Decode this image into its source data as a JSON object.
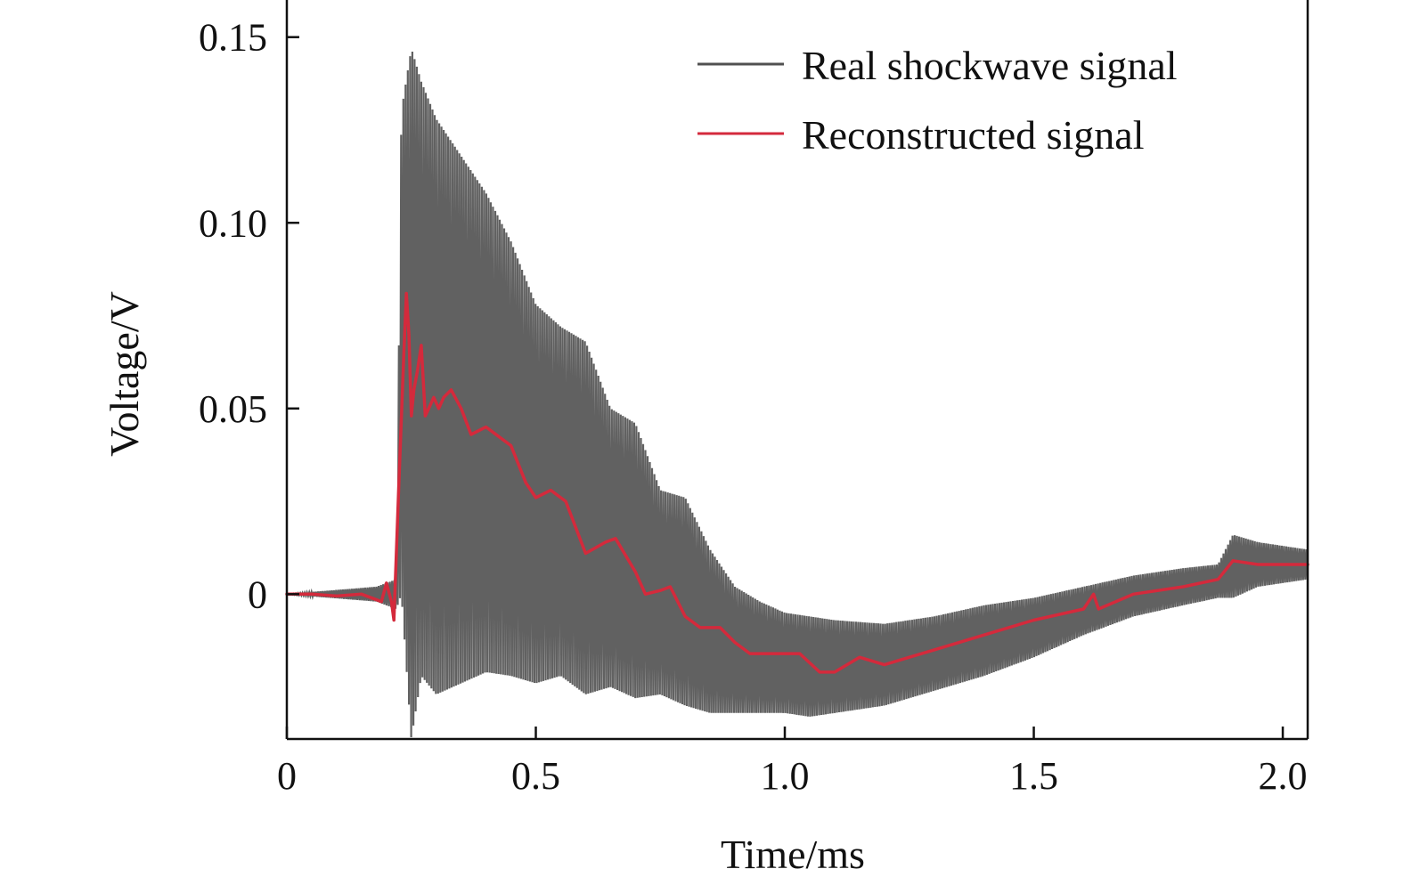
{
  "chart_data": {
    "type": "line",
    "title": "",
    "xlabel": "Time/ms",
    "ylabel": "Voltage/V",
    "xlim": [
      0,
      2.05
    ],
    "ylim": [
      -0.039,
      0.16
    ],
    "x_ticks": [
      0,
      0.5,
      1.0,
      1.5,
      2.0
    ],
    "x_tick_labels": [
      "0",
      "0.5",
      "1.0",
      "1.5",
      "2.0"
    ],
    "y_ticks": [
      0,
      0.05,
      0.1,
      0.15
    ],
    "y_tick_labels": [
      "0",
      "0.05",
      "0.10",
      "0.15"
    ],
    "grid": false,
    "legend_position": "top-right",
    "series": [
      {
        "name": "Real shockwave signal",
        "color": "#505050",
        "style": "rapid oscillation around a decaying envelope",
        "envelope_upper": [
          [
            0.0,
            0.0
          ],
          [
            0.18,
            0.002
          ],
          [
            0.22,
            0.004
          ],
          [
            0.23,
            0.13
          ],
          [
            0.25,
            0.147
          ],
          [
            0.27,
            0.138
          ],
          [
            0.3,
            0.128
          ],
          [
            0.35,
            0.118
          ],
          [
            0.4,
            0.108
          ],
          [
            0.45,
            0.095
          ],
          [
            0.5,
            0.078
          ],
          [
            0.55,
            0.072
          ],
          [
            0.6,
            0.068
          ],
          [
            0.65,
            0.05
          ],
          [
            0.7,
            0.046
          ],
          [
            0.75,
            0.028
          ],
          [
            0.8,
            0.026
          ],
          [
            0.85,
            0.012
          ],
          [
            0.9,
            0.002
          ],
          [
            0.95,
            -0.002
          ],
          [
            1.0,
            -0.005
          ],
          [
            1.05,
            -0.006
          ],
          [
            1.1,
            -0.007
          ],
          [
            1.2,
            -0.008
          ],
          [
            1.3,
            -0.006
          ],
          [
            1.4,
            -0.003
          ],
          [
            1.5,
            -0.001
          ],
          [
            1.6,
            0.002
          ],
          [
            1.7,
            0.005
          ],
          [
            1.8,
            0.007
          ],
          [
            1.87,
            0.008
          ],
          [
            1.9,
            0.016
          ],
          [
            1.95,
            0.014
          ],
          [
            2.0,
            0.013
          ],
          [
            2.05,
            0.012
          ]
        ],
        "envelope_lower": [
          [
            0.0,
            0.0
          ],
          [
            0.18,
            -0.002
          ],
          [
            0.22,
            -0.004
          ],
          [
            0.23,
            0.0
          ],
          [
            0.25,
            -0.039
          ],
          [
            0.27,
            -0.022
          ],
          [
            0.3,
            -0.027
          ],
          [
            0.35,
            -0.024
          ],
          [
            0.4,
            -0.021
          ],
          [
            0.45,
            -0.022
          ],
          [
            0.5,
            -0.024
          ],
          [
            0.55,
            -0.022
          ],
          [
            0.6,
            -0.027
          ],
          [
            0.65,
            -0.025
          ],
          [
            0.7,
            -0.028
          ],
          [
            0.75,
            -0.027
          ],
          [
            0.8,
            -0.03
          ],
          [
            0.85,
            -0.032
          ],
          [
            0.9,
            -0.032
          ],
          [
            0.95,
            -0.032
          ],
          [
            1.0,
            -0.032
          ],
          [
            1.05,
            -0.033
          ],
          [
            1.1,
            -0.032
          ],
          [
            1.2,
            -0.03
          ],
          [
            1.3,
            -0.026
          ],
          [
            1.4,
            -0.022
          ],
          [
            1.5,
            -0.017
          ],
          [
            1.6,
            -0.011
          ],
          [
            1.7,
            -0.006
          ],
          [
            1.8,
            -0.003
          ],
          [
            1.87,
            -0.001
          ],
          [
            1.9,
            -0.001
          ],
          [
            1.95,
            0.002
          ],
          [
            2.0,
            0.003
          ],
          [
            2.05,
            0.004
          ]
        ]
      },
      {
        "name": "Reconstructed signal",
        "color": "#d42a3c",
        "points": [
          [
            0.0,
            0.0
          ],
          [
            0.05,
            0.0
          ],
          [
            0.1,
            -0.0005
          ],
          [
            0.15,
            0.0
          ],
          [
            0.19,
            -0.002
          ],
          [
            0.2,
            0.003
          ],
          [
            0.21,
            -0.002
          ],
          [
            0.215,
            -0.007
          ],
          [
            0.225,
            0.03
          ],
          [
            0.235,
            0.065
          ],
          [
            0.24,
            0.081
          ],
          [
            0.245,
            0.07
          ],
          [
            0.25,
            0.048
          ],
          [
            0.255,
            0.055
          ],
          [
            0.262,
            0.06
          ],
          [
            0.27,
            0.067
          ],
          [
            0.278,
            0.048
          ],
          [
            0.285,
            0.05
          ],
          [
            0.295,
            0.053
          ],
          [
            0.305,
            0.05
          ],
          [
            0.315,
            0.053
          ],
          [
            0.33,
            0.055
          ],
          [
            0.35,
            0.05
          ],
          [
            0.37,
            0.043
          ],
          [
            0.4,
            0.045
          ],
          [
            0.43,
            0.042
          ],
          [
            0.45,
            0.04
          ],
          [
            0.48,
            0.03
          ],
          [
            0.5,
            0.026
          ],
          [
            0.53,
            0.028
          ],
          [
            0.56,
            0.025
          ],
          [
            0.6,
            0.011
          ],
          [
            0.64,
            0.014
          ],
          [
            0.66,
            0.015
          ],
          [
            0.7,
            0.006
          ],
          [
            0.72,
            0.0
          ],
          [
            0.75,
            0.001
          ],
          [
            0.77,
            0.002
          ],
          [
            0.8,
            -0.006
          ],
          [
            0.83,
            -0.009
          ],
          [
            0.87,
            -0.009
          ],
          [
            0.9,
            -0.013
          ],
          [
            0.93,
            -0.016
          ],
          [
            0.95,
            -0.016
          ],
          [
            1.0,
            -0.016
          ],
          [
            1.03,
            -0.016
          ],
          [
            1.07,
            -0.021
          ],
          [
            1.1,
            -0.021
          ],
          [
            1.15,
            -0.017
          ],
          [
            1.2,
            -0.019
          ],
          [
            1.25,
            -0.017
          ],
          [
            1.3,
            -0.015
          ],
          [
            1.4,
            -0.011
          ],
          [
            1.5,
            -0.007
          ],
          [
            1.6,
            -0.004
          ],
          [
            1.62,
            0.0
          ],
          [
            1.63,
            -0.004
          ],
          [
            1.7,
            0.0
          ],
          [
            1.8,
            0.002
          ],
          [
            1.87,
            0.004
          ],
          [
            1.9,
            0.009
          ],
          [
            1.95,
            0.008
          ],
          [
            2.0,
            0.008
          ],
          [
            2.05,
            0.008
          ]
        ]
      }
    ]
  }
}
